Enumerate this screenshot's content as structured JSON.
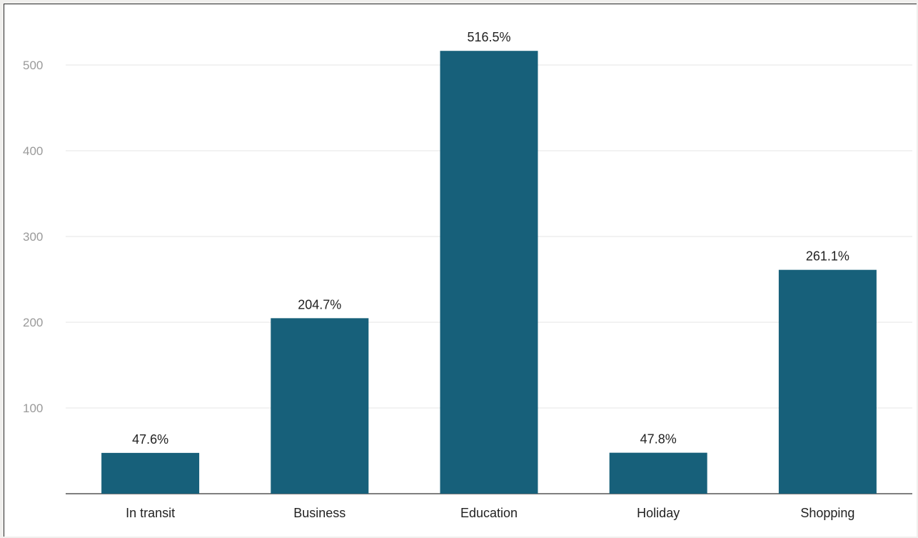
{
  "chart_data": {
    "type": "bar",
    "categories": [
      "In transit",
      "Business",
      "Education",
      "Holiday",
      "Shopping"
    ],
    "values": [
      47.6,
      204.7,
      516.5,
      47.8,
      261.1
    ],
    "data_labels": [
      "47.6%",
      "204.7%",
      "516.5%",
      "47.8%",
      "261.1%"
    ],
    "yticks": [
      100,
      200,
      300,
      400,
      500
    ],
    "ylim": [
      0,
      500
    ],
    "grid": true,
    "legend": "none",
    "bar_color": "#17607a"
  }
}
